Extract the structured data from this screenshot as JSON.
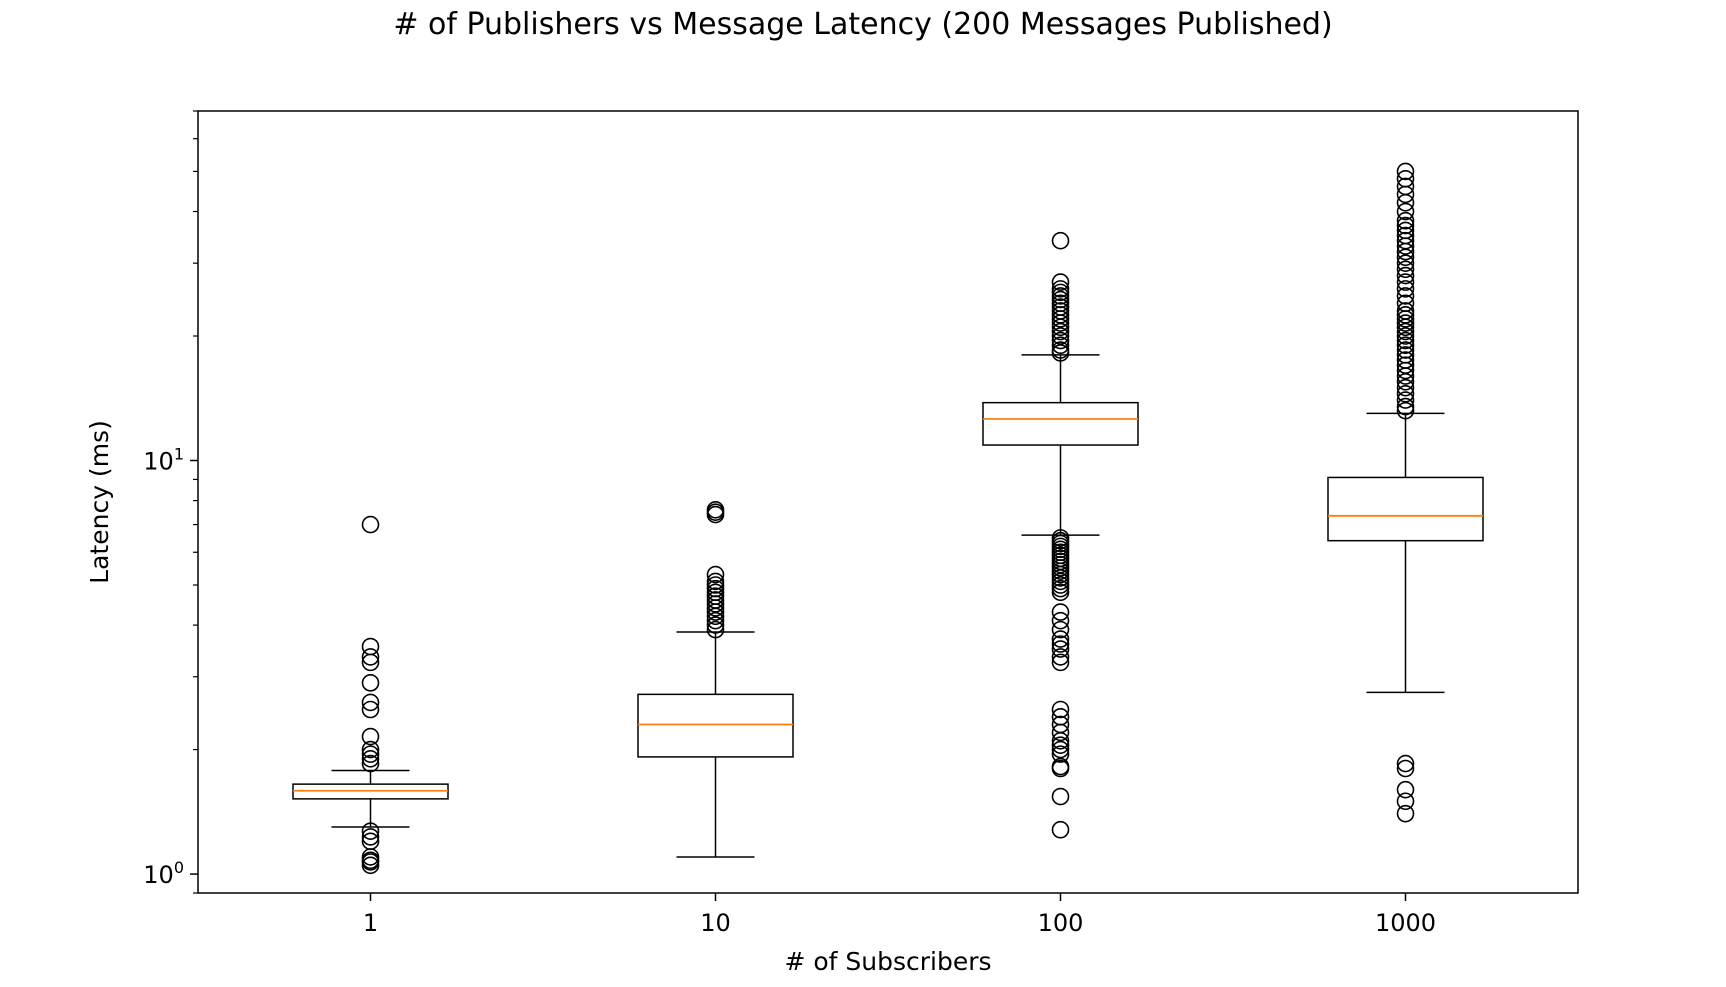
{
  "chart_data": {
    "type": "boxplot",
    "title": "# of Publishers vs Message Latency (200 Messages Published)",
    "xlabel": "# of Subscribers",
    "ylabel": "Latency (ms)",
    "yscale": "log",
    "ylim": [
      0.9,
      70
    ],
    "yticks": [
      {
        "value": 1,
        "base": "10",
        "exp": "0"
      },
      {
        "value": 10,
        "base": "10",
        "exp": "1"
      }
    ],
    "grid": false,
    "categories": [
      "1",
      "10",
      "100",
      "1000"
    ],
    "boxes": [
      {
        "category": "1",
        "whisker_low": 1.3,
        "q1": 1.52,
        "median": 1.59,
        "q3": 1.65,
        "whisker_high": 1.78,
        "outliers": [
          1.05,
          1.07,
          1.08,
          1.1,
          1.2,
          1.23,
          1.27,
          1.85,
          1.9,
          1.95,
          2.0,
          2.15,
          2.5,
          2.6,
          2.9,
          3.25,
          3.35,
          3.55,
          7.0
        ]
      },
      {
        "category": "10",
        "whisker_low": 1.1,
        "q1": 1.92,
        "median": 2.3,
        "q3": 2.72,
        "whisker_high": 3.85,
        "outliers": [
          3.9,
          4.0,
          4.1,
          4.2,
          4.3,
          4.4,
          4.5,
          4.6,
          4.7,
          4.8,
          4.9,
          5.0,
          5.1,
          5.3,
          7.4,
          7.5,
          7.6
        ]
      },
      {
        "category": "100",
        "whisker_low": 6.6,
        "q1": 10.9,
        "median": 12.6,
        "q3": 13.8,
        "whisker_high": 18.0,
        "outliers": [
          1.28,
          1.54,
          1.8,
          1.82,
          1.95,
          2.0,
          2.05,
          2.1,
          2.2,
          2.3,
          2.4,
          2.5,
          3.25,
          3.35,
          3.5,
          3.6,
          3.7,
          3.9,
          4.1,
          4.3,
          4.8,
          4.9,
          5.0,
          5.1,
          5.2,
          5.3,
          5.4,
          5.5,
          5.6,
          5.7,
          5.8,
          5.9,
          6.0,
          6.1,
          6.2,
          6.3,
          6.4,
          6.5,
          18.2,
          18.5,
          19.0,
          19.5,
          20.0,
          20.5,
          21.0,
          21.5,
          22.0,
          22.5,
          23.0,
          23.5,
          24.0,
          24.5,
          25.0,
          25.5,
          26.0,
          27.0,
          34.0
        ]
      },
      {
        "category": "1000",
        "whisker_low": 2.75,
        "q1": 6.4,
        "median": 7.35,
        "q3": 9.1,
        "whisker_high": 13.0,
        "outliers": [
          1.4,
          1.5,
          1.6,
          1.8,
          1.85,
          13.2,
          13.5,
          14.0,
          14.5,
          15.0,
          15.5,
          16.0,
          16.5,
          17.0,
          17.5,
          18.0,
          18.5,
          19.0,
          19.5,
          20.0,
          20.5,
          21.0,
          21.5,
          22.0,
          22.5,
          23.0,
          24.0,
          25.0,
          26.0,
          27.0,
          28.0,
          29.0,
          30.0,
          31.0,
          32.0,
          33.0,
          34.0,
          35.0,
          36.0,
          37.0,
          38.0,
          40.0,
          42.0,
          44.0,
          46.0,
          48.0,
          50.0
        ]
      }
    ],
    "colors": {
      "box": "#000000",
      "median": "#ff7f0e",
      "outlier": "#000000"
    }
  }
}
